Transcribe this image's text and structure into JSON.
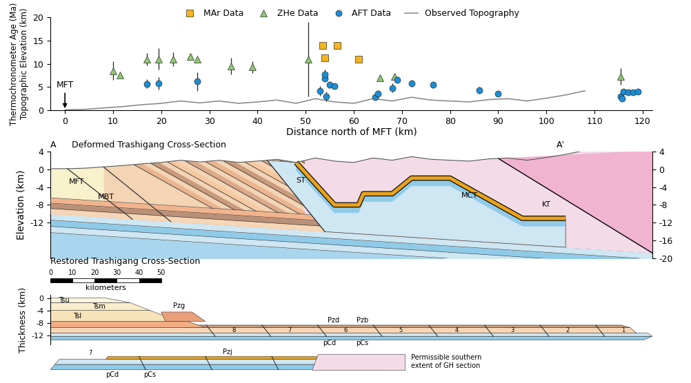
{
  "chart_data": {
    "type": "scatter",
    "xlabel": "Distance north of MFT (km)",
    "ylabel": "Thermochronometer Age (Ma)\nTopographic Elevation (km)",
    "xlim": [
      -3,
      122
    ],
    "xticks": [
      0,
      10,
      20,
      30,
      40,
      50,
      60,
      70,
      80,
      90,
      100,
      110,
      120
    ],
    "ylim": [
      0,
      20
    ],
    "yticks": [
      0,
      5,
      10,
      15,
      20
    ],
    "legend": "upper center",
    "series": [
      {
        "name": "MAr Data",
        "type": "scatter",
        "color": "#f5b51c",
        "marker": "square",
        "x": [
          53.5,
          54,
          56.5,
          61
        ],
        "values": [
          14,
          11.2,
          14,
          11
        ]
      },
      {
        "name": "ZHe Data",
        "type": "scatter",
        "color": "#8dc971",
        "marker": "triangle",
        "x": [
          10,
          11.5,
          17,
          19.5,
          22.5,
          26,
          27.5,
          34.5,
          39,
          50.5,
          65.5,
          68.5,
          115.5
        ],
        "values": [
          8.5,
          7.5,
          11,
          11,
          11,
          11.5,
          11,
          9.5,
          9.3,
          11,
          7,
          7.3,
          7.3
        ],
        "errors": [
          2,
          null,
          1.3,
          2.3,
          1.5,
          null,
          null,
          1.8,
          1.3,
          8,
          null,
          null,
          1.8
        ]
      },
      {
        "name": "AFT Data",
        "type": "scatter",
        "color": "#1b8fd6",
        "marker": "circle",
        "x": [
          17,
          19.5,
          27.5,
          53,
          54,
          54,
          54.3,
          55,
          56,
          64.5,
          65,
          68,
          69,
          72,
          76.5,
          86,
          90,
          115.5,
          115.7,
          116,
          117,
          118,
          119
        ],
        "values": [
          5.7,
          5.8,
          6.2,
          4.2,
          6.8,
          7.7,
          3,
          5.5,
          5.2,
          2.9,
          3.5,
          4.8,
          6.6,
          5.8,
          5.5,
          4.3,
          3.6,
          3,
          2.5,
          4,
          3.9,
          3.8,
          4
        ],
        "errors": [
          1,
          1.3,
          2,
          1,
          null,
          1,
          1,
          0.8,
          null,
          null,
          0.8,
          1,
          0.7,
          0.7,
          0.7,
          0.8,
          null,
          0.8,
          null,
          null,
          null,
          null,
          0.6
        ]
      },
      {
        "name": "Observed Topography",
        "type": "line",
        "color": "#8c8c8c",
        "line_style": "solid",
        "x": [
          0,
          4,
          8,
          12,
          16,
          20,
          24,
          28,
          32,
          36,
          40,
          44,
          48,
          52,
          56,
          60,
          64,
          68,
          72,
          76,
          80,
          84,
          88,
          92,
          96,
          100,
          104,
          108
        ],
        "values": [
          0.1,
          0.2,
          0.5,
          0.8,
          1.2,
          1.5,
          2.0,
          1.6,
          2.0,
          1.5,
          1.8,
          2.2,
          1.5,
          2.5,
          1.8,
          1.5,
          2.5,
          2.0,
          2.8,
          2.2,
          2.0,
          1.8,
          2.3,
          2.5,
          2.0,
          2.6,
          3.3,
          4.2
        ]
      }
    ],
    "annotations": [
      {
        "text": "MFT",
        "x": 0,
        "y": 0
      }
    ]
  },
  "deformed_section": {
    "title": "Deformed Trashigang Cross-Section",
    "start_label": "A",
    "end_label": "A'",
    "ylabel": "Elevation (km)",
    "ylim": [
      -20,
      4
    ],
    "yticks": [
      4,
      0,
      -4,
      -8,
      -12
    ],
    "y2ticks": [
      4,
      0,
      -4,
      -8,
      -12,
      -16,
      -20
    ],
    "fault_labels": [
      "MFT",
      "MBT",
      "ST",
      "MCT",
      "KT"
    ]
  },
  "restored_section": {
    "title": "Restored Trashigang Cross-Section",
    "ylabel": "Thickness (km)",
    "xlim": [
      0,
      272
    ],
    "ylim": [
      -15,
      1
    ],
    "yticks": [
      0,
      -4,
      -8,
      -12
    ],
    "scale_bar": {
      "ticks": [
        0,
        10,
        20,
        30,
        40,
        50
      ],
      "label": "kilometers"
    },
    "unit_labels": [
      "Tsu",
      "Tsm",
      "Tsl",
      "Pzg",
      "Pzd",
      "Pzb",
      "pCd",
      "pCs"
    ],
    "thrust_sheets": [
      8,
      7,
      6,
      5,
      4,
      3,
      2,
      1
    ],
    "lower_strip": {
      "unit_labels": [
        "pCd",
        "pCs",
        "Pzj"
      ],
      "thrust_sheets": [
        7
      ],
      "note": "Permissible southern\nextent of GH section"
    }
  }
}
